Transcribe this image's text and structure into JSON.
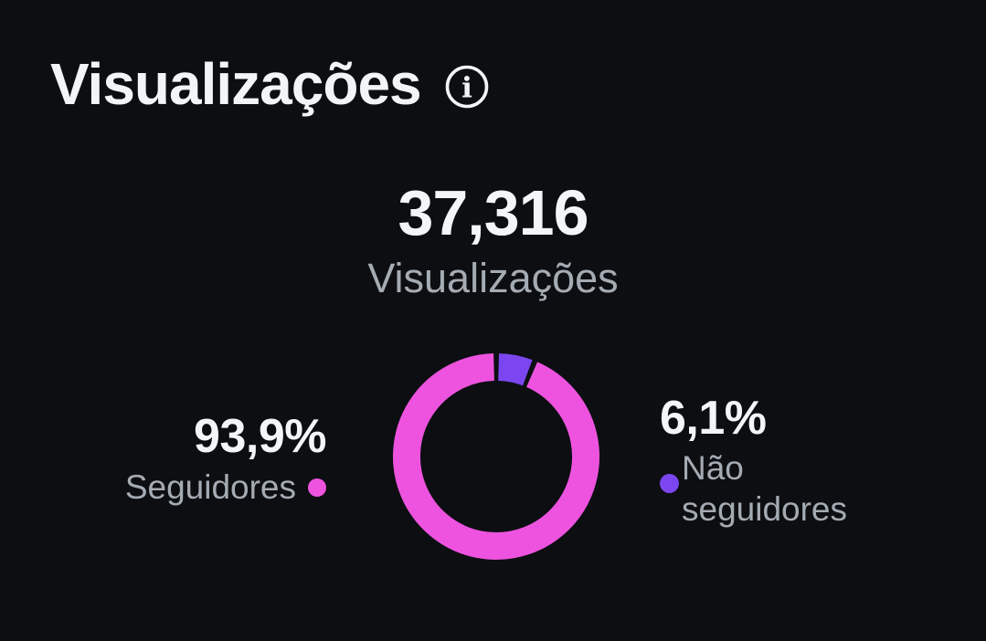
{
  "colors": {
    "background": "#0C0E12",
    "text_primary": "#F4F5F7",
    "text_secondary": "#A5ABB3",
    "followers_pink": "#ED53DE",
    "non_followers_purple": "#7B46EF"
  },
  "header": {
    "title": "Visualizações",
    "info_icon": "info-icon"
  },
  "summary": {
    "value": "37,316",
    "label": "Visualizações"
  },
  "chart_data": {
    "type": "pie",
    "subtype": "donut",
    "title": "Visualizações",
    "total": 37316,
    "total_label": "37,316",
    "series": [
      {
        "name": "Seguidores",
        "value": 93.9,
        "percent_label": "93,9%",
        "color": "#ED53DE"
      },
      {
        "name": "Não seguidores",
        "value": 6.1,
        "percent_label": "6,1%",
        "color": "#7B46EF"
      }
    ],
    "legend_position": "sides",
    "donut": {
      "start_angle_deg": 22,
      "pad_angle_deg": 3,
      "mid_radius": 98,
      "thickness": 30
    }
  },
  "legend": {
    "left": {
      "percent": "93,9%",
      "label": "Seguidores"
    },
    "right": {
      "percent": "6,1%",
      "lines": [
        "Não",
        "seguidores"
      ]
    }
  }
}
